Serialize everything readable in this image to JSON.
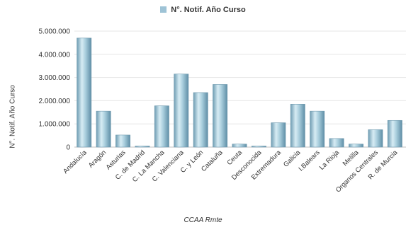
{
  "chart_data": {
    "type": "bar",
    "legend": "N°. Notif. Año Curso",
    "ylabel": "N°. Notif. Año Curso",
    "xlabel": "CCAA Rmte",
    "ylim": [
      0,
      5000000
    ],
    "yticks": [
      "0",
      "1.000.000",
      "2.000.000",
      "3.000.000",
      "4.000.000",
      "5.000.000"
    ],
    "grid": true,
    "legend_position": "top-center",
    "bar_color": "#9ec3d6",
    "categories": [
      "Andalucía",
      "Aragón",
      "Asturias",
      "C. de Madrid",
      "C. La Mancha",
      "C. Valenciana",
      "C. y León",
      "Cataluña",
      "Ceuta",
      "Desconocida",
      "Extremadura",
      "Galicia",
      "I.Balears",
      "La Rioja",
      "Melilla",
      "Organos Centrales",
      "R. de Murcia"
    ],
    "series": [
      {
        "name": "N°. Notif. Año Curso",
        "values": [
          4700000,
          1550000,
          520000,
          40000,
          1780000,
          3150000,
          2350000,
          2700000,
          130000,
          40000,
          1050000,
          1850000,
          1550000,
          370000,
          130000,
          750000,
          1150000
        ]
      }
    ]
  }
}
